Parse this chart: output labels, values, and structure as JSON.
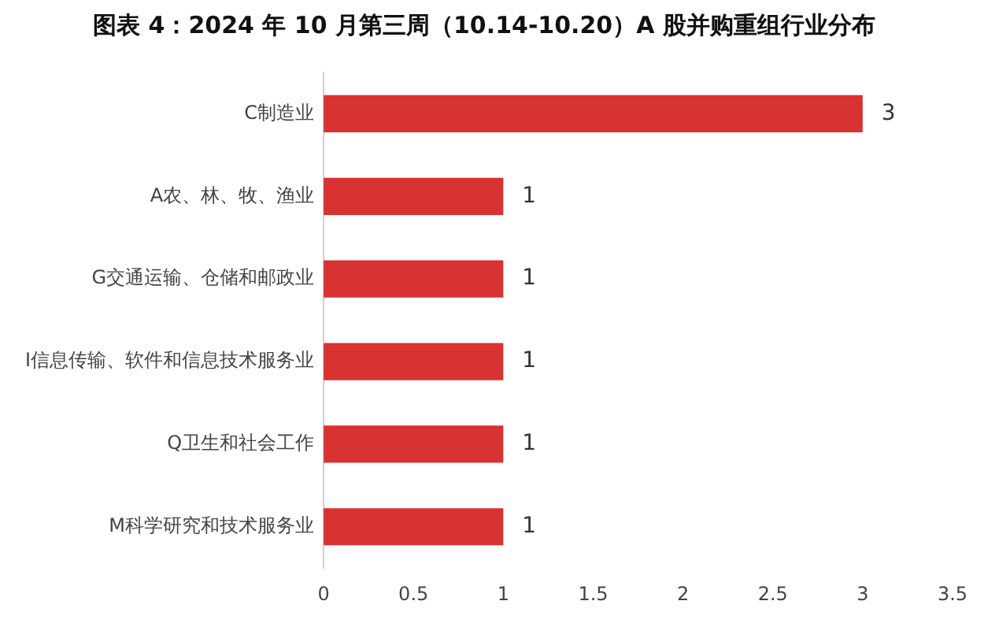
{
  "chart_data": {
    "type": "bar",
    "orientation": "horizontal",
    "title": "图表 4：2024 年 10 月第三周（10.14-10.20）A 股并购重组行业分布",
    "categories": [
      "C制造业",
      "A农、林、牧、渔业",
      "G交通运输、仓储和邮政业",
      "I信息传输、软件和信息技术服务业",
      "Q卫生和社会工作",
      "M科学研究和技术服务业"
    ],
    "values": [
      3,
      1,
      1,
      1,
      1,
      1
    ],
    "color": "#d93232",
    "xlim": [
      0,
      3.5
    ],
    "xticks": [
      0,
      0.5,
      1,
      1.5,
      2,
      2.5,
      3,
      3.5
    ],
    "grid": false,
    "legend": false,
    "data_labels": true
  }
}
